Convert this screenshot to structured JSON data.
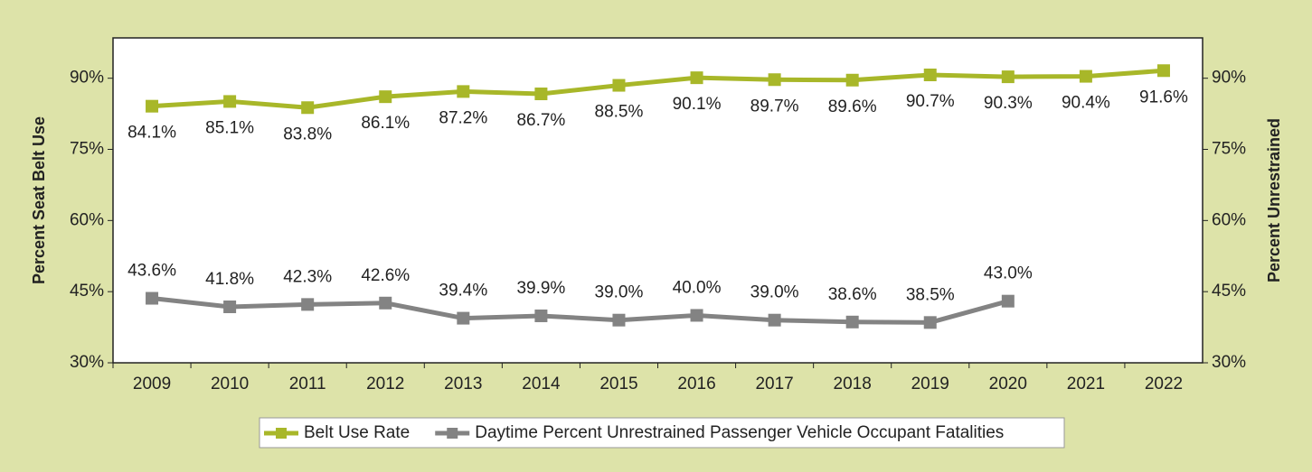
{
  "chart_data": {
    "type": "line",
    "categories": [
      "2009",
      "2010",
      "2011",
      "2012",
      "2013",
      "2014",
      "2015",
      "2016",
      "2017",
      "2018",
      "2019",
      "2020",
      "2021",
      "2022"
    ],
    "series": [
      {
        "name": "Belt Use Rate",
        "color": "#a8b729",
        "values": [
          84.1,
          85.1,
          83.8,
          86.1,
          87.2,
          86.7,
          88.5,
          90.1,
          89.7,
          89.6,
          90.7,
          90.3,
          90.4,
          91.6
        ],
        "value_labels": [
          "84.1%",
          "85.1%",
          "83.8%",
          "86.1%",
          "87.2%",
          "86.7%",
          "88.5%",
          "90.1%",
          "89.7%",
          "89.6%",
          "90.7%",
          "90.3%",
          "90.4%",
          "91.6%"
        ]
      },
      {
        "name": "Daytime Percent Unrestrained Passenger Vehicle Occupant Fatalities",
        "color": "#838383",
        "axis": "y2",
        "values": [
          43.6,
          41.8,
          42.3,
          42.6,
          39.4,
          39.9,
          39.0,
          40.0,
          39.0,
          38.6,
          38.5,
          43.0,
          null,
          null
        ],
        "value_labels": [
          "43.6%",
          "41.8%",
          "42.3%",
          "42.6%",
          "39.4%",
          "39.9%",
          "39.0%",
          "40.0%",
          "39.0%",
          "38.6%",
          "38.5%",
          "43.0%",
          null,
          null
        ]
      }
    ],
    "y_label": "Percent Seat Belt Use",
    "y2_label": "Percent Unrestrained",
    "ylim": [
      30,
      98.5
    ],
    "yticks": [
      {
        "value": 30,
        "label": "30%"
      },
      {
        "value": 45,
        "label": "45%"
      },
      {
        "value": 60,
        "label": "60%"
      },
      {
        "value": 75,
        "label": "75%"
      },
      {
        "value": 90,
        "label": "90%"
      }
    ],
    "y2lim": [
      30,
      98.5
    ],
    "y2ticks": [
      {
        "value": 30,
        "label": "30%"
      },
      {
        "value": 45,
        "label": "45%"
      },
      {
        "value": 60,
        "label": "60%"
      },
      {
        "value": 75,
        "label": "75%"
      },
      {
        "value": 90,
        "label": "90%"
      }
    ],
    "legend": "bottom"
  }
}
